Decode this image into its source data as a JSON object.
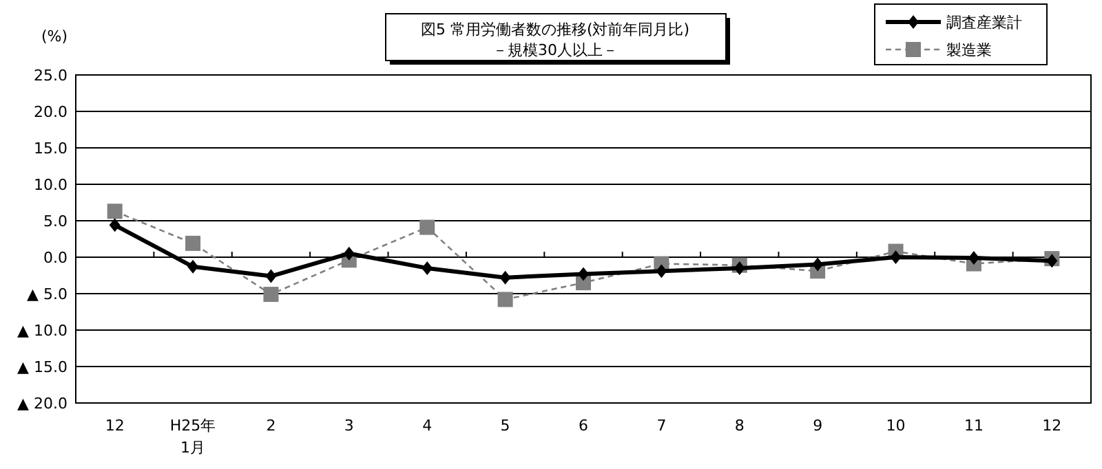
{
  "chart_data": {
    "type": "line",
    "title": "図5 常用労働者数の推移(対前年同月比)",
    "subtitle": "－規模30人以上－",
    "ylabel": "(%)",
    "categories": [
      "12",
      "H25年\n1月",
      "2",
      "3",
      "4",
      "5",
      "6",
      "7",
      "8",
      "9",
      "10",
      "11",
      "12"
    ],
    "series": [
      {
        "name": "調査産業計",
        "color": "#000000",
        "marker": "diamond",
        "line_style": "solid",
        "values": [
          4.4,
          -1.3,
          -2.6,
          0.5,
          -1.5,
          -2.8,
          -2.3,
          -1.9,
          -1.5,
          -1.0,
          0.0,
          -0.1,
          -0.5
        ]
      },
      {
        "name": "製造業",
        "color": "#808080",
        "marker": "square",
        "line_style": "dashed",
        "values": [
          6.3,
          1.9,
          -5.1,
          -0.4,
          4.1,
          -5.8,
          -3.5,
          -0.9,
          -1.1,
          -1.9,
          0.8,
          -0.9,
          -0.2
        ]
      }
    ],
    "ylim": [
      -20,
      25
    ],
    "yticks": [
      {
        "value": 25,
        "label": "25.0"
      },
      {
        "value": 20,
        "label": "20.0"
      },
      {
        "value": 15,
        "label": "15.0"
      },
      {
        "value": 10,
        "label": "10.0"
      },
      {
        "value": 5,
        "label": "5.0"
      },
      {
        "value": 0,
        "label": "0.0"
      },
      {
        "value": -5,
        "label": "▲ 5.0"
      },
      {
        "value": -10,
        "label": "▲ 10.0"
      },
      {
        "value": -15,
        "label": "▲ 15.0"
      },
      {
        "value": -20,
        "label": "▲ 20.0"
      }
    ],
    "grid": "y",
    "legend": "top right"
  }
}
